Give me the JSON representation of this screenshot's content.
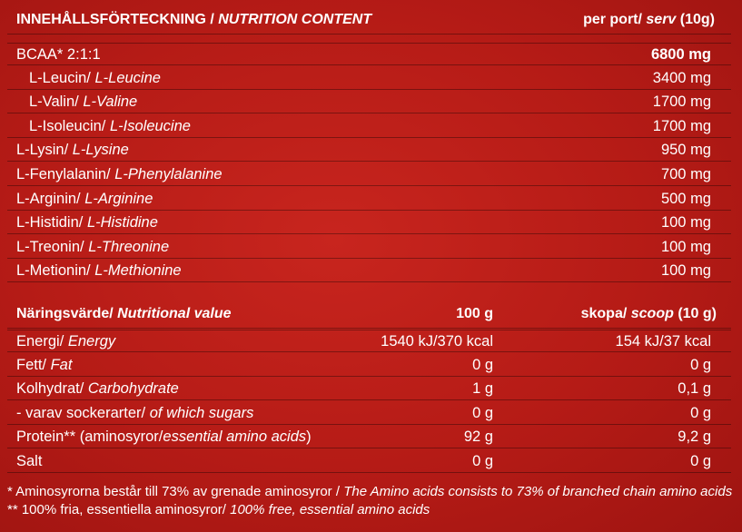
{
  "amino": {
    "header": {
      "label_sv": "INNEHÅLLSFÖRTECKNING / ",
      "label_en": "NUTRITION CONTENT",
      "col_sv": "per port/ ",
      "col_en": "serv",
      "col_unit": " (10g)"
    },
    "rows": [
      {
        "sv": "BCAA* 2:1:1",
        "en": "",
        "value": "6800 mg",
        "bold": true
      },
      {
        "sv": "L-Leucin/ ",
        "en": "L-Leucine",
        "value": "3400 mg",
        "indent": true
      },
      {
        "sv": "L-Valin/ ",
        "en": "L-Valine",
        "value": "1700 mg",
        "indent": true
      },
      {
        "sv": "L-Isoleucin/ ",
        "en": "L-Isoleucine",
        "value": "1700 mg",
        "indent": true
      },
      {
        "sv": "L-Lysin/ ",
        "en": "L-Lysine",
        "value": "950 mg"
      },
      {
        "sv": "L-Fenylalanin/ ",
        "en": "L-Phenylalanine",
        "value": "700 mg"
      },
      {
        "sv": "L-Arginin/ ",
        "en": "L-Arginine",
        "value": "500 mg"
      },
      {
        "sv": "L-Histidin/ ",
        "en": "L-Histidine",
        "value": "100 mg"
      },
      {
        "sv": "L-Treonin/ ",
        "en": "L-Threonine",
        "value": "100 mg"
      },
      {
        "sv": "L-Metionin/ ",
        "en": "L-Methionine",
        "value": "100 mg"
      }
    ]
  },
  "nutrition": {
    "header": {
      "label_sv": "Näringsvärde/ ",
      "label_en": "Nutritional value",
      "col100": "100 g",
      "scoop_sv": "skopa/ ",
      "scoop_en": "scoop",
      "scoop_unit": " (10 g)"
    },
    "rows": [
      {
        "sv": "Energi/ ",
        "en": "Energy",
        "v100": "1540 kJ/370 kcal",
        "vscoop": "154 kJ/37 kcal"
      },
      {
        "sv": "Fett/ ",
        "en": "Fat",
        "v100": "0 g",
        "vscoop": "0 g"
      },
      {
        "sv": "Kolhydrat/ ",
        "en": "Carbohydrate",
        "v100": "1 g",
        "vscoop": "0,1 g"
      },
      {
        "sv": "- varav sockerarter/ ",
        "en": "of which sugars",
        "v100": "0 g",
        "vscoop": "0 g"
      },
      {
        "sv": "Protein** (aminosyror/",
        "en": "essential amino acids",
        "tail": ")",
        "v100": "92 g",
        "vscoop": "9,2 g"
      },
      {
        "sv": "Salt",
        "en": "",
        "v100": "0 g",
        "vscoop": "0 g"
      }
    ]
  },
  "footnote": {
    "line1_sv": "* Aminosyrorna består till 73% av grenade aminosyror / ",
    "line1_en": "The Amino acids consists to 73% of branched chain amino acids",
    "line2_sv": "   ** 100% fria, essentiella aminosyror/ ",
    "line2_en": "100% free, essential amino acids"
  }
}
